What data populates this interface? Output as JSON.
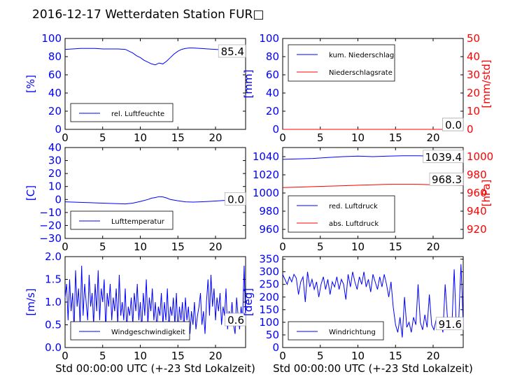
{
  "title": "2016-12-17 Wetterdaten Station FUR□",
  "colors": {
    "primary": "#0000ff",
    "secondary": "#ff0000"
  },
  "chart_data": [
    {
      "id": "humidity",
      "type": "line",
      "ylabel": "[%]",
      "xlim": [
        0,
        24
      ],
      "ylim": [
        0,
        100
      ],
      "xticks": [
        "0",
        "5",
        "10",
        "15",
        "20"
      ],
      "yticks": [
        "0",
        "20",
        "40",
        "60",
        "80",
        "100"
      ],
      "legend": [
        "rel. Luftfeuchte"
      ],
      "annotation": "85.4",
      "series": [
        {
          "name": "rel. Luftfeuchte",
          "color": "#0000ff",
          "x": [
            0,
            1,
            2,
            3,
            4,
            5,
            6,
            7,
            8,
            8.5,
            9,
            9.5,
            10,
            10.5,
            11,
            11.5,
            12,
            12.5,
            13,
            13.5,
            14,
            14.5,
            15,
            15.5,
            16,
            16.5,
            17,
            18,
            19,
            20,
            21,
            22,
            23,
            24
          ],
          "y": [
            88,
            88.5,
            89,
            89,
            89,
            88.5,
            88.5,
            88.5,
            88,
            86,
            84,
            81,
            79,
            76,
            74,
            72,
            71,
            73,
            72,
            75,
            79,
            83,
            86,
            88,
            89,
            89.5,
            89.5,
            89,
            88.5,
            88,
            87.5,
            87,
            86,
            85.4
          ]
        }
      ]
    },
    {
      "id": "precipitation",
      "type": "line",
      "ylabel": "[mm]",
      "ylabel2": "[mm/std]",
      "xlim": [
        0,
        24
      ],
      "ylim": [
        0,
        100
      ],
      "ylim2": [
        0,
        50
      ],
      "xticks": [
        "0",
        "5",
        "10",
        "15",
        "20"
      ],
      "yticks": [
        "0",
        "20",
        "40",
        "60",
        "80",
        "100"
      ],
      "yticks2": [
        "0",
        "10",
        "20",
        "30",
        "40",
        "50"
      ],
      "legend": [
        "kum. Niederschlag",
        "Niederschlagsrate"
      ],
      "annotation": "0.0",
      "annotation2": "0.0",
      "series": [
        {
          "name": "kum. Niederschlag",
          "color": "#0000ff",
          "x": [
            0,
            24
          ],
          "y": [
            0,
            0
          ]
        },
        {
          "name": "Niederschlagsrate",
          "color": "#ff0000",
          "x": [
            0,
            24
          ],
          "y": [
            0,
            0
          ]
        }
      ]
    },
    {
      "id": "temperature",
      "type": "line",
      "ylabel": "[C]",
      "xlim": [
        0,
        24
      ],
      "ylim": [
        -30,
        40
      ],
      "xticks": [
        "0",
        "5",
        "10",
        "15",
        "20"
      ],
      "yticks": [
        "−30",
        "−20",
        "−10",
        "0",
        "10",
        "20",
        "30",
        "40"
      ],
      "legend": [
        "Lufttemperatur"
      ],
      "annotation": "0.0",
      "series": [
        {
          "name": "Lufttemperatur",
          "color": "#0000ff",
          "x": [
            0,
            1,
            2,
            3,
            4,
            5,
            6,
            7,
            8,
            9,
            10,
            11,
            11.5,
            12,
            12.5,
            13,
            13.5,
            14,
            15,
            16,
            17,
            18,
            19,
            20,
            21,
            22,
            23,
            24
          ],
          "y": [
            -1.8,
            -2,
            -2.2,
            -2.4,
            -2.6,
            -2.8,
            -3,
            -3.2,
            -3.4,
            -2.8,
            -1.5,
            0,
            1,
            1.5,
            2.2,
            2,
            1.2,
            0,
            -1,
            -1.8,
            -2,
            -1.8,
            -1.5,
            -1.2,
            -0.8,
            -0.5,
            -0.2,
            0
          ]
        }
      ]
    },
    {
      "id": "pressure",
      "type": "line",
      "ylabel2": "[hPa]",
      "xlim": [
        0,
        24
      ],
      "ylim": [
        950,
        1050
      ],
      "ylim2": [
        910,
        1010
      ],
      "xticks": [
        "0",
        "5",
        "10",
        "15",
        "20"
      ],
      "yticks": [
        "960",
        "980",
        "1000",
        "1020",
        "1040"
      ],
      "yticks2": [
        "920",
        "940",
        "960",
        "980",
        "1000"
      ],
      "legend": [
        "red. Luftdruck",
        "abs. Luftdruck"
      ],
      "annotation": "1039.4",
      "annotation2": "968.3",
      "series": [
        {
          "name": "red. Luftdruck",
          "color": "#0000ff",
          "x": [
            0,
            2,
            4,
            6,
            8,
            10,
            12,
            14,
            16,
            18,
            20,
            22,
            24
          ],
          "y": [
            1037,
            1037.5,
            1038,
            1039,
            1040,
            1040.5,
            1040,
            1040.5,
            1041,
            1041,
            1040.5,
            1040,
            1039.4
          ]
        },
        {
          "name": "abs. Luftdruck",
          "color": "#ff0000",
          "x": [
            0,
            2,
            4,
            6,
            8,
            10,
            12,
            14,
            16,
            18,
            20,
            22,
            24
          ],
          "y": [
            966,
            966.5,
            967,
            967.5,
            968,
            968.5,
            969,
            969.5,
            969.5,
            969.5,
            969,
            968.5,
            968.3
          ]
        }
      ]
    },
    {
      "id": "windspeed",
      "type": "line",
      "ylabel": "[m/s]",
      "xlabel": "Std 00:00:00 UTC (+-23 Std Lokalzeit)",
      "xlim": [
        0,
        24
      ],
      "ylim": [
        0,
        2
      ],
      "xticks": [
        "0",
        "5",
        "10",
        "15",
        "20"
      ],
      "yticks": [
        "0.0",
        "0.5",
        "1.0",
        "1.5",
        "2.0"
      ],
      "legend": [
        "Windgeschwindigkeit"
      ],
      "annotation": "0.6",
      "series": [
        {
          "name": "Windgeschwindigkeit",
          "color": "#0000ff",
          "x": [
            0,
            0.2,
            0.4,
            0.6,
            0.8,
            1,
            1.2,
            1.4,
            1.6,
            1.8,
            2,
            2.2,
            2.4,
            2.6,
            2.8,
            3,
            3.2,
            3.4,
            3.6,
            3.8,
            4,
            4.2,
            4.4,
            4.6,
            4.8,
            5,
            5.2,
            5.4,
            5.6,
            5.8,
            6,
            6.2,
            6.4,
            6.6,
            6.8,
            7,
            7.2,
            7.4,
            7.6,
            7.8,
            8,
            8.2,
            8.4,
            8.6,
            8.8,
            9,
            9.2,
            9.4,
            9.6,
            9.8,
            10,
            10.2,
            10.4,
            10.6,
            10.8,
            11,
            11.2,
            11.4,
            11.6,
            11.8,
            12,
            12.2,
            12.4,
            12.6,
            12.8,
            13,
            13.2,
            13.4,
            13.6,
            13.8,
            14,
            14.2,
            14.4,
            14.6,
            14.8,
            15,
            15.2,
            15.4,
            15.6,
            15.8,
            16,
            16.2,
            16.4,
            16.6,
            16.8,
            17,
            17.2,
            17.4,
            17.6,
            17.8,
            18,
            18.2,
            18.4,
            18.6,
            18.8,
            19,
            19.2,
            19.4,
            19.6,
            19.8,
            20,
            20.2,
            20.4,
            20.6,
            20.8,
            21,
            21.2,
            21.4,
            21.6,
            21.8,
            22,
            22.2,
            22.4,
            22.6,
            22.8,
            23,
            23.2,
            23.4,
            23.6,
            23.8,
            24
          ],
          "y": [
            1.1,
            1.4,
            0.6,
            1.5,
            0.8,
            1.2,
            0.4,
            1.7,
            0.9,
            1.3,
            0.5,
            1.8,
            0.7,
            1.4,
            1.0,
            0.6,
            1.6,
            0.9,
            1.2,
            0.5,
            1.4,
            0.8,
            1.7,
            0.6,
            1.3,
            1.0,
            1.5,
            0.4,
            1.2,
            0.9,
            1.4,
            0.6,
            1.1,
            0.8,
            1.3,
            0.5,
            1.6,
            0.7,
            1.0,
            0.6,
            1.3,
            0.4,
            0.9,
            0.7,
            1.1,
            0.5,
            1.2,
            0.8,
            1.4,
            0.6,
            1.0,
            0.4,
            1.2,
            0.7,
            1.5,
            0.5,
            1.1,
            0.8,
            1.3,
            0.6,
            1.0,
            0.4,
            0.9,
            0.7,
            1.2,
            0.5,
            1.0,
            0.6,
            1.3,
            0.4,
            0.9,
            0.7,
            1.1,
            0.5,
            1.2,
            0.3,
            0.9,
            0.6,
            1.0,
            0.4,
            1.1,
            0.6,
            0.9,
            0.3,
            0.8,
            0.5,
            1.0,
            0.4,
            0.7,
            0.9,
            1.2,
            0.5,
            0.8,
            0.3,
            1.0,
            1.5,
            0.7,
            1.6,
            0.9,
            1.3,
            0.6,
            1.1,
            0.8,
            1.2,
            0.5,
            0.9,
            0.7,
            1.3,
            0.4,
            0.8,
            0.6,
            1.0,
            0.5,
            0.3,
            1.1,
            0.7,
            0.4,
            0.9,
            0.6,
            1.8,
            0.6
          ]
        }
      ]
    },
    {
      "id": "winddir",
      "type": "line",
      "ylabel": "[deg]",
      "xlabel": "Std 00:00:00 UTC (+-23 Std Lokalzeit)",
      "xlim": [
        0,
        24
      ],
      "ylim": [
        0,
        360
      ],
      "xticks": [
        "0",
        "5",
        "10",
        "15",
        "20"
      ],
      "yticks": [
        "0",
        "50",
        "100",
        "150",
        "200",
        "250",
        "300",
        "350"
      ],
      "legend": [
        "Windrichtung"
      ],
      "annotation": "91.6",
      "series": [
        {
          "name": "Windrichtung",
          "color": "#0000ff",
          "x": [
            0,
            0.3,
            0.6,
            0.9,
            1.2,
            1.5,
            1.8,
            2.1,
            2.4,
            2.7,
            3,
            3.3,
            3.6,
            3.9,
            4.2,
            4.5,
            4.8,
            5.1,
            5.4,
            5.7,
            6,
            6.3,
            6.6,
            6.9,
            7.2,
            7.5,
            7.8,
            8.1,
            8.4,
            8.7,
            9,
            9.3,
            9.6,
            9.9,
            10.2,
            10.5,
            10.8,
            11.1,
            11.4,
            11.7,
            12,
            12.3,
            12.6,
            12.9,
            13.2,
            13.5,
            13.8,
            14.1,
            14.4,
            14.7,
            15,
            15.3,
            15.6,
            15.9,
            16.2,
            16.5,
            16.8,
            17.1,
            17.4,
            17.7,
            18,
            18.3,
            18.6,
            18.9,
            19.2,
            19.5,
            19.8,
            20.1,
            20.4,
            20.7,
            21,
            21.3,
            21.6,
            21.9,
            22.2,
            22.5,
            22.8,
            23.1,
            23.4,
            23.7,
            24
          ],
          "y": [
            290,
            270,
            250,
            280,
            260,
            290,
            275,
            210,
            260,
            280,
            180,
            300,
            240,
            270,
            230,
            260,
            200,
            250,
            280,
            230,
            270,
            210,
            260,
            240,
            280,
            230,
            270,
            250,
            190,
            290,
            240,
            300,
            260,
            230,
            280,
            250,
            300,
            240,
            270,
            220,
            290,
            260,
            230,
            280,
            240,
            290,
            250,
            200,
            260,
            160,
            90,
            60,
            120,
            40,
            200,
            80,
            100,
            60,
            120,
            90,
            250,
            100,
            70,
            130,
            80,
            210,
            90,
            70,
            110,
            80,
            100,
            60,
            250,
            120,
            80,
            90,
            310,
            70,
            100,
            330,
            92
          ]
        }
      ]
    }
  ]
}
